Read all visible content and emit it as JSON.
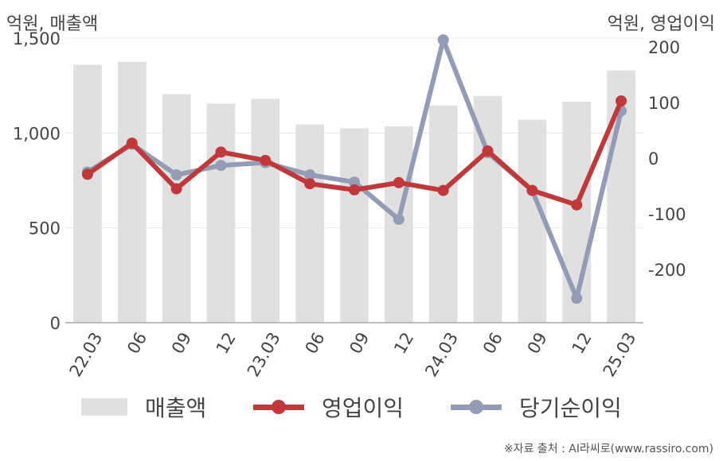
{
  "chart_data": {
    "type": "bar+line",
    "left_axis_unit": "억원, 매출액",
    "right_axis_unit": "억원, 영업이익",
    "categories": [
      "22.03",
      "06",
      "09",
      "12",
      "23.03",
      "06",
      "09",
      "12",
      "24.03",
      "06",
      "09",
      "12",
      "25.03"
    ],
    "left_axis": {
      "ticks": [
        "0",
        "500",
        "1,000",
        "1,500"
      ],
      "tick_values": [
        0,
        500,
        1000,
        1500
      ],
      "ylim": [
        0,
        1500
      ]
    },
    "right_axis": {
      "ticks": [
        "-200",
        "-100",
        "0",
        "100",
        "200"
      ],
      "tick_values": [
        -200,
        -100,
        0,
        100,
        200
      ],
      "ylim": [
        -296,
        216
      ]
    },
    "series": [
      {
        "name": "매출액",
        "type": "bar",
        "axis": "left",
        "color": "#e0e0e0",
        "values": [
          1360,
          1375,
          1205,
          1155,
          1180,
          1045,
          1025,
          1035,
          1145,
          1195,
          1070,
          1165,
          1330
        ]
      },
      {
        "name": "영업이익",
        "type": "line",
        "axis": "right",
        "color": "#c0383a",
        "values": [
          -29,
          27,
          -55,
          11,
          -4,
          -46,
          -57,
          -44,
          -58,
          13,
          -58,
          -84,
          103
        ]
      },
      {
        "name": "당기순이익",
        "type": "line",
        "axis": "right",
        "color": "#929cb4",
        "values": [
          -25,
          25,
          -30,
          -13,
          -8,
          -30,
          -43,
          -110,
          213,
          10,
          -58,
          -252,
          85
        ]
      }
    ],
    "grid": true,
    "legend_position": "bottom"
  },
  "source_text": "※자료 출처 : AI라씨로(www.rassiro.com)"
}
